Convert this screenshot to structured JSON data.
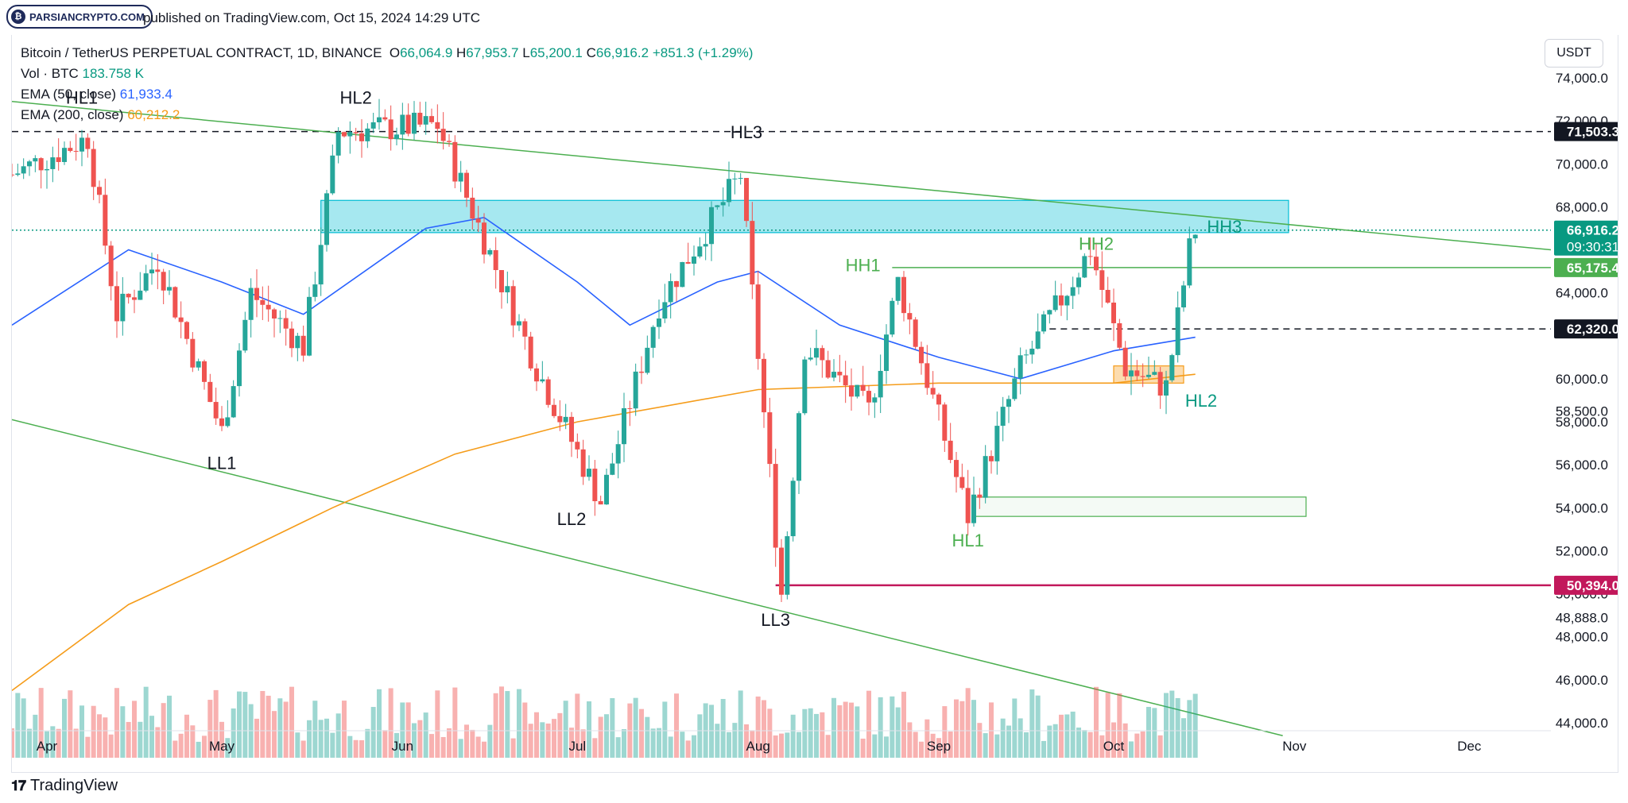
{
  "header": {
    "logo_text": "PARSIANCRYPTO.COM",
    "published": "published on TradingView.com, Oct 15, 2024 14:29 UTC"
  },
  "legend": {
    "symbol": "Bitcoin / TetherUS PERPETUAL CONTRACT, 1D, BINANCE",
    "o_label": "O",
    "o": "66,064.9",
    "h_label": "H",
    "h": "67,953.7",
    "l_label": "L",
    "l": "65,200.1",
    "c_label": "C",
    "c": "66,916.2",
    "change": "+851.3 (+1.29%)",
    "vol_label": "Vol · BTC",
    "vol": "183.758 K",
    "ema50_label": "EMA (50, close)",
    "ema50": "61,933.4",
    "ema200_label": "EMA (200, close)",
    "ema200": "60,212.2"
  },
  "currency_button": "USDT",
  "price_axis": [
    "74,000.0",
    "72,000.0",
    "70,000.0",
    "68,000.0",
    "64,000.0",
    "60,000.0",
    "58,500.0",
    "58,000.0",
    "56,000.0",
    "54,000.0",
    "52,000.0",
    "50,000.0",
    "48,888.0",
    "48,000.0",
    "46,000.0",
    "44,000.0"
  ],
  "price_tags": [
    {
      "label": "71,503.3",
      "color": "#131722",
      "value": 71503.3
    },
    {
      "label": "66,916.2",
      "color": "#089981",
      "value": 66916.2,
      "sub": "09:30:31"
    },
    {
      "label": "65,175.4",
      "color": "#4caf50",
      "value": 65175.4
    },
    {
      "label": "62,320.0",
      "color": "#131722",
      "value": 62320
    },
    {
      "label": "50,394.0",
      "color": "#c2185b",
      "value": 50394
    }
  ],
  "time_axis": [
    "Apr",
    "May",
    "Jun",
    "Jul",
    "Aug",
    "Sep",
    "Oct",
    "Nov",
    "Dec"
  ],
  "annotations": [
    {
      "text": "HL1",
      "color": "#131722"
    },
    {
      "text": "HL2",
      "color": "#131722"
    },
    {
      "text": "HL3",
      "color": "#131722"
    },
    {
      "text": "LL1",
      "color": "#131722"
    },
    {
      "text": "LL2",
      "color": "#131722"
    },
    {
      "text": "LL3",
      "color": "#131722"
    },
    {
      "text": "HH1",
      "color": "#4caf50"
    },
    {
      "text": "HH2",
      "color": "#4caf50"
    },
    {
      "text": "HH3",
      "color": "#089981"
    },
    {
      "text": "HL2",
      "color": "#089981"
    },
    {
      "text": "HL1",
      "color": "#4caf50"
    }
  ],
  "footer": {
    "brand": "TradingView"
  },
  "chart_data": {
    "type": "candlestick",
    "symbol": "BTCUSDT.P",
    "timeframe": "1D",
    "x_range": [
      "2024-03-26",
      "2024-12-15"
    ],
    "y_range": [
      44000,
      74000
    ],
    "series": [
      {
        "name": "EMA (50, close)",
        "color": "#2962ff",
        "points": [
          [
            "2024-03-26",
            62500
          ],
          [
            "2024-04-15",
            66000
          ],
          [
            "2024-05-01",
            64500
          ],
          [
            "2024-05-15",
            63000
          ],
          [
            "2024-06-05",
            67000
          ],
          [
            "2024-06-15",
            67500
          ],
          [
            "2024-07-01",
            64500
          ],
          [
            "2024-07-10",
            62500
          ],
          [
            "2024-07-25",
            64500
          ],
          [
            "2024-08-01",
            65000
          ],
          [
            "2024-08-15",
            62500
          ],
          [
            "2024-09-01",
            61000
          ],
          [
            "2024-09-15",
            60000
          ],
          [
            "2024-10-01",
            61300
          ],
          [
            "2024-10-15",
            61933.4
          ]
        ]
      },
      {
        "name": "EMA (200, close)",
        "color": "#f59c1a",
        "points": [
          [
            "2024-03-26",
            45500
          ],
          [
            "2024-04-15",
            49500
          ],
          [
            "2024-05-01",
            51500
          ],
          [
            "2024-05-20",
            54000
          ],
          [
            "2024-06-10",
            56500
          ],
          [
            "2024-07-01",
            58000
          ],
          [
            "2024-08-01",
            59500
          ],
          [
            "2024-09-01",
            59800
          ],
          [
            "2024-10-01",
            59800
          ],
          [
            "2024-10-15",
            60212.2
          ]
        ]
      }
    ],
    "trendlines": [
      {
        "name": "upper",
        "color": "#4caf50",
        "from": [
          "2024-03-26",
          72900
        ],
        "to": [
          "2024-12-15",
          66000
        ]
      },
      {
        "name": "lower",
        "color": "#4caf50",
        "from": [
          "2024-03-26",
          58100
        ],
        "to": [
          "2024-10-30",
          43400
        ]
      }
    ],
    "horizontal_levels": [
      {
        "value": 71503.3,
        "style": "dashed",
        "color": "#131722"
      },
      {
        "value": 62320,
        "style": "dashed",
        "color": "#131722"
      },
      {
        "value": 65175.4,
        "style": "solid",
        "color": "#4caf50"
      },
      {
        "value": 50394,
        "style": "solid",
        "color": "#c2185b"
      },
      {
        "value": 66916.2,
        "style": "dotted",
        "color": "#089981"
      }
    ],
    "zones": [
      {
        "name": "resistance",
        "color": "#00bcd4",
        "x": [
          "2024-05-18",
          "2024-10-31"
        ],
        "y": [
          66800,
          68300
        ]
      },
      {
        "name": "support",
        "color": "#f59c1a",
        "x": [
          "2024-10-01",
          "2024-10-13"
        ],
        "y": [
          59800,
          60600
        ]
      },
      {
        "name": "demand",
        "color": "#4caf50",
        "x": [
          "2024-09-07",
          "2024-11-03"
        ],
        "y": [
          53600,
          54500
        ]
      }
    ],
    "last_price": 66916.2
  }
}
